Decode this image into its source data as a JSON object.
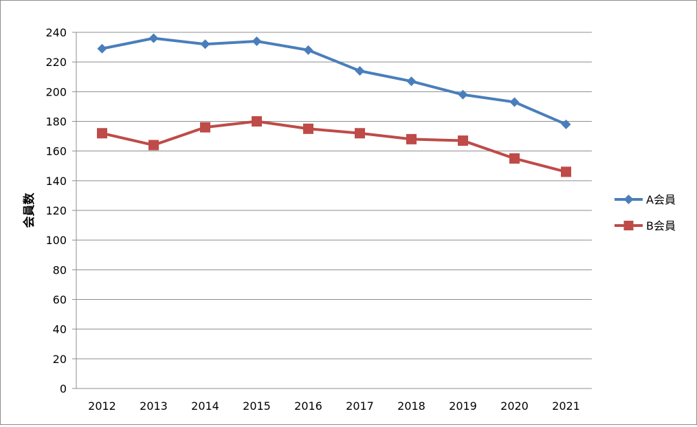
{
  "chart_data": {
    "type": "line",
    "title": "",
    "xlabel": "",
    "ylabel": "会員数",
    "ylim": [
      0,
      240
    ],
    "ytick_step": 20,
    "grid": "horizontal",
    "legend_position": "right",
    "categories": [
      "2012",
      "2013",
      "2014",
      "2015",
      "2016",
      "2017",
      "2018",
      "2019",
      "2020",
      "2021"
    ],
    "series": [
      {
        "name": "A会員",
        "color": "#4a7ebb",
        "marker": "diamond",
        "values": [
          229,
          236,
          232,
          234,
          228,
          214,
          207,
          198,
          193,
          178
        ]
      },
      {
        "name": "B会員",
        "color": "#be4b48",
        "marker": "square",
        "values": [
          172,
          164,
          176,
          180,
          175,
          172,
          168,
          167,
          155,
          146
        ]
      }
    ]
  }
}
